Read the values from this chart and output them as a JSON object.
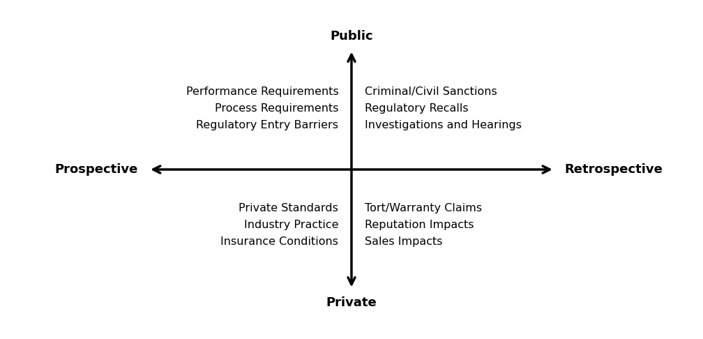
{
  "background_color": "#ffffff",
  "axis_color": "#000000",
  "text_color": "#000000",
  "axis_label_top": "Public",
  "axis_label_bottom": "Private",
  "axis_label_left": "Prospective",
  "axis_label_right": "Retrospective",
  "quadrant_UL": [
    "Performance Requirements",
    "Process Requirements",
    "Regulatory Entry Barriers"
  ],
  "quadrant_UR": [
    "Criminal/Civil Sanctions",
    "Regulatory Recalls",
    "Investigations and Hearings"
  ],
  "quadrant_LL": [
    "Private Standards",
    "Industry Practice",
    "Insurance Conditions"
  ],
  "quadrant_LR": [
    "Tort/Warranty Claims",
    "Reputation Impacts",
    "Sales Impacts"
  ],
  "axis_label_fontsize": 13,
  "quadrant_text_fontsize": 11.5,
  "axis_label_fontweight": "bold",
  "arrow_lw": 2.5,
  "arrow_mutation_scale": 18
}
